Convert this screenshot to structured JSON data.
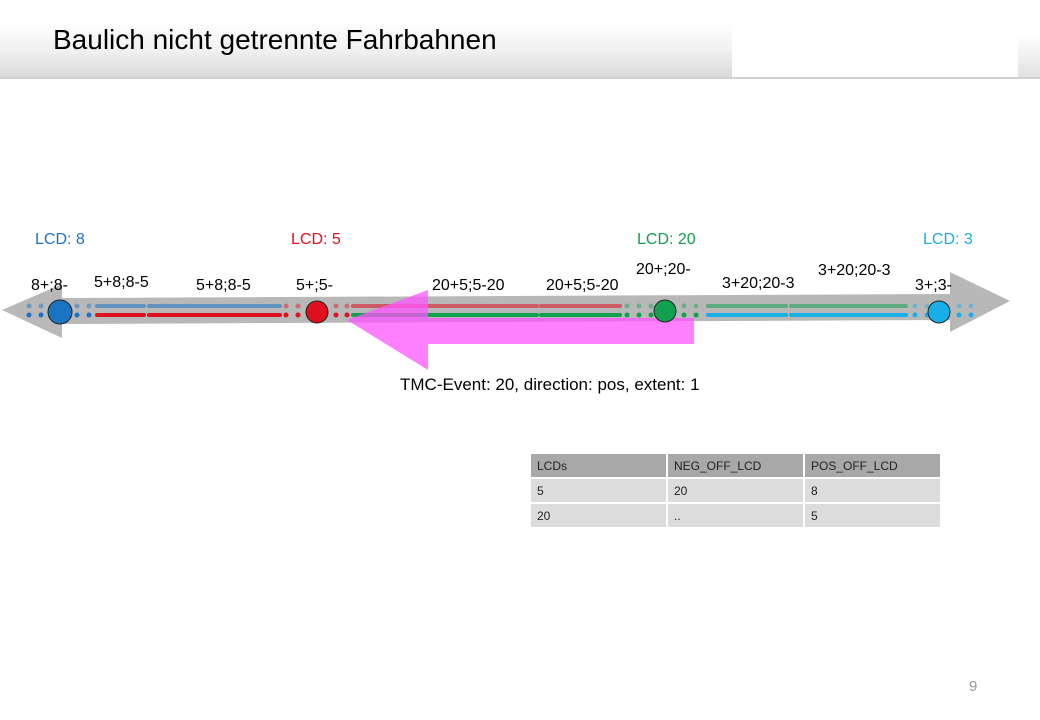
{
  "title": "Baulich nicht getrennte Fahrbahnen",
  "lcds": [
    {
      "label": "LCD: 8",
      "color": "#1a74c4"
    },
    {
      "label": "LCD: 5",
      "color": "#e0101e"
    },
    {
      "label": "LCD: 20",
      "color": "#12a050"
    },
    {
      "label": "LCD: 3",
      "color": "#18aee8"
    }
  ],
  "segment_labels": [
    "8+;8-",
    "5+8;8-5",
    "5+8;8-5",
    "5+;5-",
    "20+5;5-20",
    "20+5;5-20",
    "20+;20-",
    "3+20;20-3",
    "3+20;20-3",
    "3+;3-"
  ],
  "event": "TMC-Event: 20, direction: pos, extent: 1",
  "event_color": "#ff66ff",
  "table": {
    "headers": [
      "LCDs",
      "NEG_OFF_LCD",
      "POS_OFF_LCD"
    ],
    "rows": [
      [
        "5",
        "20",
        "8"
      ],
      [
        "20",
        "..",
        "5"
      ]
    ]
  },
  "page_number": "9"
}
